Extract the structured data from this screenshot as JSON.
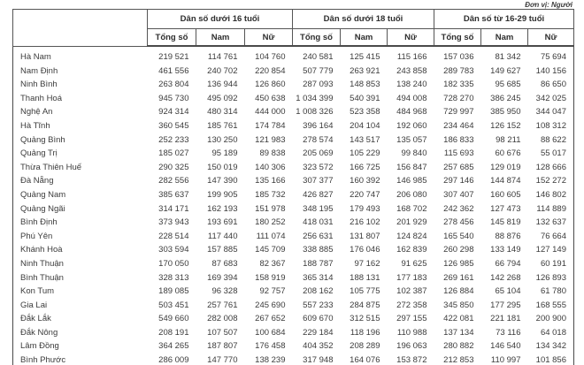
{
  "unit_label": "Đơn vị: Người",
  "table": {
    "column_groups": [
      "Dân số dưới 16 tuổi",
      "Dân số dưới 18 tuổi",
      "Dân số từ 16-29 tuổi"
    ],
    "subcolumns": [
      "Tổng số",
      "Nam",
      "Nữ"
    ],
    "rows": [
      {
        "name": "Hà Nam",
        "values": [
          "219 521",
          "114 761",
          "104 760",
          "240 581",
          "125 415",
          "115 166",
          "157 036",
          "81 342",
          "75 694"
        ]
      },
      {
        "name": "Nam Định",
        "values": [
          "461 556",
          "240 702",
          "220 854",
          "507 779",
          "263 921",
          "243 858",
          "289 783",
          "149 627",
          "140 156"
        ]
      },
      {
        "name": "Ninh Bình",
        "values": [
          "263 804",
          "136 944",
          "126 860",
          "287 093",
          "148 853",
          "138 240",
          "182 335",
          "95 685",
          "86 650"
        ]
      },
      {
        "name": "Thanh Hoá",
        "values": [
          "945 730",
          "495 092",
          "450 638",
          "1 034 399",
          "540 391",
          "494 008",
          "728 270",
          "386 245",
          "342 025"
        ]
      },
      {
        "name": "Nghệ An",
        "values": [
          "924 314",
          "480 314",
          "444 000",
          "1 008 326",
          "523 358",
          "484 968",
          "729 997",
          "385 950",
          "344 047"
        ]
      },
      {
        "name": "Hà Tĩnh",
        "values": [
          "360 545",
          "185 761",
          "174 784",
          "396 164",
          "204 104",
          "192 060",
          "234 464",
          "126 152",
          "108 312"
        ]
      },
      {
        "name": "Quảng Bình",
        "values": [
          "252 233",
          "130 250",
          "121 983",
          "278 574",
          "143 517",
          "135 057",
          "186 833",
          "98 211",
          "88 622"
        ]
      },
      {
        "name": "Quảng Trị",
        "values": [
          "185 027",
          "95 189",
          "89 838",
          "205 069",
          "105 229",
          "99 840",
          "115 693",
          "60 676",
          "55 017"
        ]
      },
      {
        "name": "Thừa Thiên Huế",
        "values": [
          "290 325",
          "150 019",
          "140 306",
          "323 572",
          "166 725",
          "156 847",
          "257 685",
          "129 019",
          "128 666"
        ]
      },
      {
        "name": "Đà Nẵng",
        "values": [
          "282 556",
          "147 390",
          "135 166",
          "307 377",
          "160 392",
          "146 985",
          "297 146",
          "144 874",
          "152 272"
        ]
      },
      {
        "name": "Quảng Nam",
        "values": [
          "385 637",
          "199 905",
          "185 732",
          "426 827",
          "220 747",
          "206 080",
          "307 407",
          "160 605",
          "146 802"
        ]
      },
      {
        "name": "Quảng Ngãi",
        "values": [
          "314 171",
          "162 193",
          "151 978",
          "348 195",
          "179 493",
          "168 702",
          "242 362",
          "127 473",
          "114 889"
        ]
      },
      {
        "name": "Bình Định",
        "values": [
          "373 943",
          "193 691",
          "180 252",
          "418 031",
          "216 102",
          "201 929",
          "278 456",
          "145 819",
          "132 637"
        ]
      },
      {
        "name": "Phú Yên",
        "values": [
          "228 514",
          "117 440",
          "111 074",
          "256 631",
          "131 807",
          "124 824",
          "165 540",
          "88 876",
          "76 664"
        ]
      },
      {
        "name": "Khánh Hoà",
        "values": [
          "303 594",
          "157 885",
          "145 709",
          "338 885",
          "176 046",
          "162 839",
          "260 298",
          "133 149",
          "127 149"
        ]
      },
      {
        "name": "Ninh Thuận",
        "values": [
          "170 050",
          "87 683",
          "82 367",
          "188 787",
          "97 162",
          "91 625",
          "126 985",
          "66 794",
          "60 191"
        ]
      },
      {
        "name": "Bình Thuận",
        "values": [
          "328 313",
          "169 394",
          "158 919",
          "365 314",
          "188 131",
          "177 183",
          "269 161",
          "142 268",
          "126 893"
        ]
      },
      {
        "name": "Kon Tum",
        "values": [
          "189 085",
          "96 328",
          "92 757",
          "208 162",
          "105 775",
          "102 387",
          "126 884",
          "65 104",
          "61 780"
        ]
      },
      {
        "name": "Gia Lai",
        "values": [
          "503 451",
          "257 761",
          "245 690",
          "557 233",
          "284 875",
          "272 358",
          "345 850",
          "177 295",
          "168 555"
        ]
      },
      {
        "name": "Đắk Lắk",
        "values": [
          "549 660",
          "282 008",
          "267 652",
          "609 670",
          "312 515",
          "297 155",
          "422 081",
          "221 181",
          "200 900"
        ]
      },
      {
        "name": "Đắk Nông",
        "values": [
          "208 191",
          "107 507",
          "100 684",
          "229 184",
          "118 196",
          "110 988",
          "137 134",
          "73 116",
          "64 018"
        ]
      },
      {
        "name": "Lâm Đồng",
        "values": [
          "364 265",
          "187 807",
          "176 458",
          "404 352",
          "208 289",
          "196 063",
          "280 882",
          "146 540",
          "134 342"
        ]
      },
      {
        "name": "Bình Phước",
        "values": [
          "286 009",
          "147 770",
          "138 239",
          "317 948",
          "164 076",
          "153 872",
          "212 853",
          "110 997",
          "101 856"
        ]
      }
    ]
  }
}
